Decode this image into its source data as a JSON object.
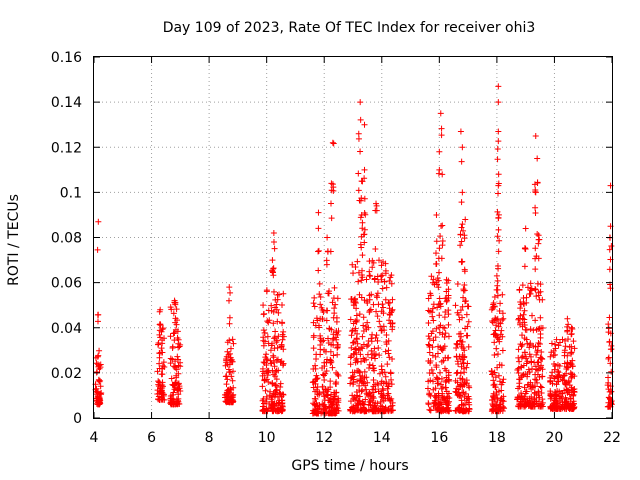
{
  "chart_data": {
    "type": "scatter",
    "title": "Day 109 of 2023, Rate Of TEC Index for receiver ohi3",
    "xlabel": "GPS time / hours",
    "ylabel": "ROTI / TECUs",
    "xlim": [
      4,
      22
    ],
    "ylim": [
      0,
      0.16
    ],
    "xticks": [
      "4",
      "6",
      "8",
      "10",
      "12",
      "14",
      "16",
      "18",
      "20",
      "22"
    ],
    "yticks": [
      "0",
      "0.02",
      "0.04",
      "0.06",
      "0.08",
      "0.1",
      "0.12",
      "0.14",
      "0.16"
    ],
    "grid": true,
    "marker": "+",
    "color": "#ff0000",
    "clusters": [
      {
        "x": [
          4.05,
          4.25
        ],
        "y": [
          0.006,
          0.03
        ],
        "peaks": [
          [
            4.15,
            0.087
          ]
        ]
      },
      {
        "x": [
          6.2,
          6.45
        ],
        "y": [
          0.008,
          0.04
        ],
        "peaks": [
          [
            6.3,
            0.048
          ]
        ]
      },
      {
        "x": [
          6.65,
          7.0
        ],
        "y": [
          0.006,
          0.05
        ],
        "peaks": [
          [
            6.8,
            0.052
          ]
        ]
      },
      {
        "x": [
          8.55,
          8.85
        ],
        "y": [
          0.007,
          0.035
        ],
        "peaks": [
          [
            8.7,
            0.058
          ]
        ]
      },
      {
        "x": [
          9.85,
          10.6
        ],
        "y": [
          0.003,
          0.06
        ],
        "peaks": [
          [
            10.25,
            0.082
          ],
          [
            10.2,
            0.07
          ]
        ]
      },
      {
        "x": [
          11.6,
          12.5
        ],
        "y": [
          0.002,
          0.06
        ],
        "peaks": [
          [
            11.8,
            0.091
          ],
          [
            12.3,
            0.122
          ],
          [
            12.25,
            0.104
          ],
          [
            12.1,
            0.08
          ]
        ]
      },
      {
        "x": [
          12.9,
          14.4
        ],
        "y": [
          0.003,
          0.07
        ],
        "peaks": [
          [
            13.25,
            0.14
          ],
          [
            13.4,
            0.13
          ],
          [
            13.2,
            0.126
          ],
          [
            13.4,
            0.11
          ],
          [
            13.3,
            0.105
          ],
          [
            13.8,
            0.095
          ],
          [
            13.3,
            0.09
          ]
        ]
      },
      {
        "x": [
          15.6,
          16.35
        ],
        "y": [
          0.003,
          0.065
        ],
        "peaks": [
          [
            16.05,
            0.135
          ],
          [
            16.0,
            0.118
          ],
          [
            16.1,
            0.108
          ],
          [
            15.9,
            0.09
          ]
        ]
      },
      {
        "x": [
          16.55,
          17.05
        ],
        "y": [
          0.003,
          0.06
        ],
        "peaks": [
          [
            16.75,
            0.127
          ],
          [
            16.8,
            0.12
          ],
          [
            16.8,
            0.1
          ],
          [
            16.9,
            0.088
          ]
        ]
      },
      {
        "x": [
          17.8,
          18.25
        ],
        "y": [
          0.003,
          0.055
        ],
        "peaks": [
          [
            18.05,
            0.147
          ],
          [
            18.05,
            0.14
          ],
          [
            18.05,
            0.127
          ],
          [
            18.05,
            0.103
          ],
          [
            18.0,
            0.063
          ]
        ]
      },
      {
        "x": [
          18.7,
          19.6
        ],
        "y": [
          0.005,
          0.06
        ],
        "peaks": [
          [
            19.35,
            0.125
          ],
          [
            19.4,
            0.115
          ],
          [
            19.35,
            0.1
          ],
          [
            19.0,
            0.084
          ],
          [
            19.45,
            0.081
          ]
        ]
      },
      {
        "x": [
          19.85,
          20.7
        ],
        "y": [
          0.004,
          0.035
        ],
        "peaks": [
          [
            20.45,
            0.044
          ],
          [
            20.6,
            0.04
          ]
        ]
      },
      {
        "x": [
          21.85,
          22.0
        ],
        "y": [
          0.005,
          0.05
        ],
        "peaks": [
          [
            21.95,
            0.103
          ],
          [
            21.95,
            0.085
          ]
        ]
      }
    ]
  }
}
